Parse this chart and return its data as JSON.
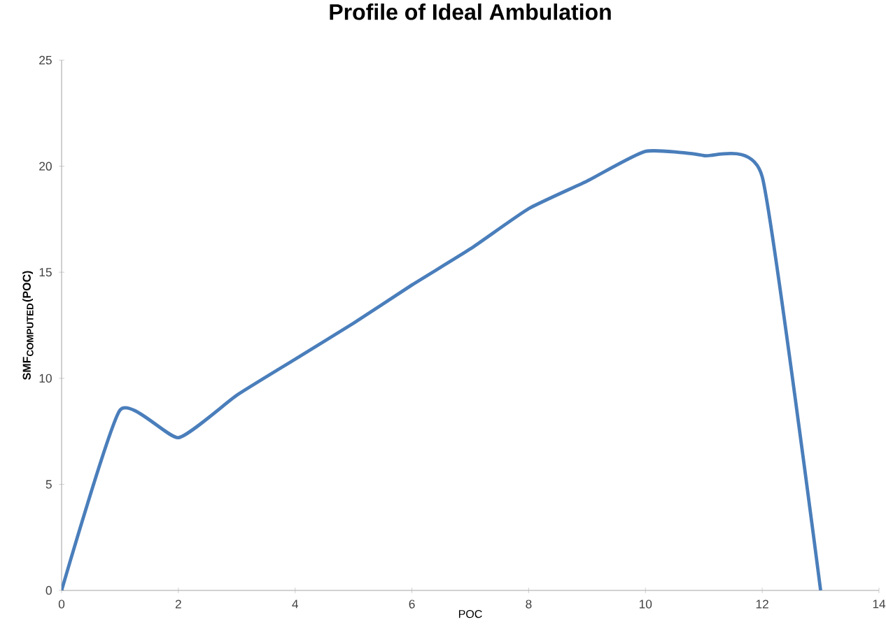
{
  "chart_data": {
    "type": "line",
    "title": "Profile of Ideal Ambulation",
    "xlabel": "POC",
    "ylabel": "**SMF$_{COMPUTED}$(POC)**",
    "x": [
      0,
      1,
      2,
      3,
      4,
      5,
      6,
      7,
      8,
      9,
      10,
      11,
      12,
      13
    ],
    "series": [
      {
        "color": "#4a7ebb",
        "values": [
          0,
          8.5,
          7.2,
          9.2,
          10.9,
          12.6,
          14.4,
          16.1,
          18.0,
          19.3,
          20.7,
          20.5,
          19.5,
          0
        ]
      }
    ],
    "xlim": [
      0,
      14
    ],
    "ylim": [
      0,
      25
    ],
    "xticks": [
      0,
      2,
      4,
      6,
      8,
      10,
      12,
      14
    ],
    "yticks": [
      0,
      5,
      10,
      15,
      20,
      25
    ],
    "line_style": "solid"
  }
}
